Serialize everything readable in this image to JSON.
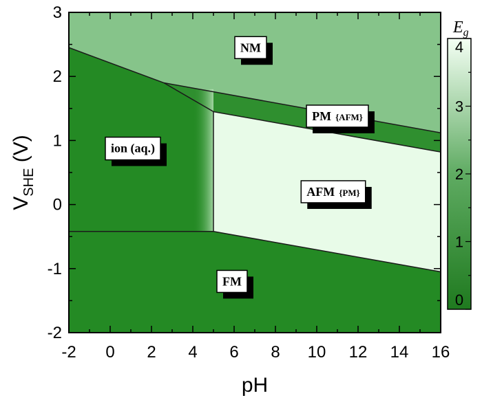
{
  "chart_data": {
    "type": "heatmap",
    "xlabel": "pH",
    "ylabel": {
      "main": "V",
      "sub": "SHE",
      "unit": " (V)"
    },
    "xlim": [
      -2,
      16
    ],
    "ylim": [
      -2,
      3
    ],
    "xticks": [
      -2,
      0,
      2,
      4,
      6,
      8,
      10,
      12,
      14,
      16
    ],
    "yticks": [
      -2,
      -1,
      0,
      1,
      2,
      3
    ],
    "colorbar": {
      "title": {
        "main": "E",
        "sub": "g"
      },
      "range": [
        0,
        4
      ],
      "ticks": [
        0,
        1,
        2,
        3,
        4
      ],
      "color_low": "#1f7a1f",
      "color_high": "#f4fff4"
    },
    "regions": [
      {
        "name": "NM",
        "label": "NM",
        "label_sub": "",
        "Eg": 2.2,
        "color": "#86c48a",
        "polygon": [
          [
            -2,
            3
          ],
          [
            16,
            3
          ],
          [
            16,
            1.12
          ],
          [
            2.6,
            1.9
          ],
          [
            -2,
            2.45
          ]
        ],
        "label_at": [
          6.8,
          2.45
        ]
      },
      {
        "name": "ion",
        "label": "ion (aq.)",
        "label_sub": "",
        "Eg": 0.3,
        "color": "#248a24",
        "polygon": [
          [
            -2,
            2.45
          ],
          [
            2.6,
            1.9
          ],
          [
            5,
            1.45
          ],
          [
            5,
            -0.42
          ],
          [
            -2,
            -0.42
          ]
        ],
        "label_at": [
          1.1,
          0.88
        ]
      },
      {
        "name": "PM",
        "label": "PM",
        "label_sub": "{AFM}",
        "Eg": 0.9,
        "color": "#2f8f2f",
        "polygon": [
          [
            2.6,
            1.9
          ],
          [
            16,
            1.12
          ],
          [
            16,
            0.82
          ],
          [
            5,
            1.45
          ]
        ],
        "label_at": [
          11,
          1.38
        ]
      },
      {
        "name": "AFM",
        "label": "AFM",
        "label_sub": "{PM}",
        "Eg": 3.8,
        "color": "#e8fbe8",
        "polygon": [
          [
            5,
            1.45
          ],
          [
            16,
            0.82
          ],
          [
            16,
            -1.05
          ],
          [
            5,
            -0.42
          ]
        ],
        "label_at": [
          10.8,
          0.2
        ]
      },
      {
        "name": "FM",
        "label": "FM",
        "label_sub": "",
        "Eg": 0.3,
        "color": "#248a24",
        "polygon": [
          [
            -2,
            -0.42
          ],
          [
            5,
            -0.42
          ],
          [
            16,
            -1.05
          ],
          [
            16,
            -2
          ],
          [
            -2,
            -2
          ]
        ],
        "label_at": [
          5.9,
          -1.2
        ]
      }
    ],
    "boundaries": [
      [
        [
          -2,
          2.45
        ],
        [
          2.6,
          1.9
        ],
        [
          5,
          1.45
        ],
        [
          5,
          -0.42
        ]
      ],
      [
        [
          2.6,
          1.9
        ],
        [
          16,
          1.12
        ]
      ],
      [
        [
          5,
          1.45
        ],
        [
          16,
          0.82
        ]
      ],
      [
        [
          -2,
          -0.42
        ],
        [
          5,
          -0.42
        ],
        [
          16,
          -1.05
        ]
      ]
    ]
  }
}
